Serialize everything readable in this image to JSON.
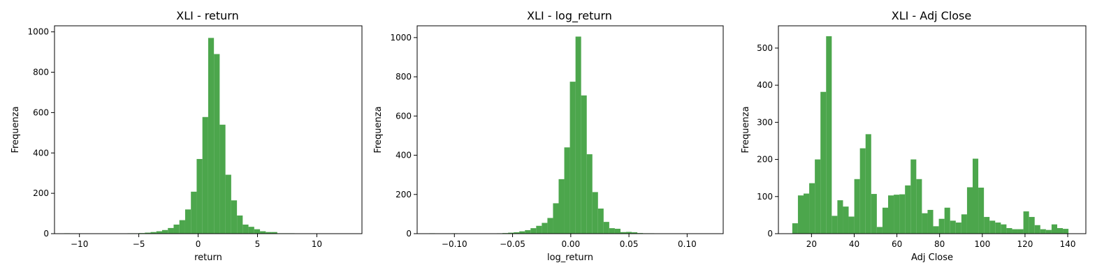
{
  "chart_data": [
    {
      "type": "bar",
      "title": "XLI - return",
      "xlabel": "return",
      "ylabel": "Frequenza",
      "xlim": [
        -12.1,
        13.8
      ],
      "ylim": [
        0,
        1030
      ],
      "xticks": [
        -10,
        -5,
        0,
        5,
        10
      ],
      "yticks": [
        0,
        200,
        400,
        600,
        800,
        1000
      ],
      "bin_start": -11.28,
      "bin_width": 0.485,
      "color": "#4ca64c",
      "values": [
        2,
        0,
        1,
        0,
        1,
        0,
        1,
        0,
        1,
        0,
        1,
        2,
        2,
        3,
        5,
        8,
        12,
        18,
        28,
        45,
        67,
        120,
        208,
        370,
        578,
        970,
        890,
        540,
        292,
        165,
        90,
        45,
        34,
        22,
        12,
        8,
        8,
        2,
        2,
        2,
        1,
        1,
        0,
        1,
        0,
        0,
        0,
        1,
        0,
        0,
        1
      ]
    },
    {
      "type": "bar",
      "title": "XLI - log_return",
      "xlabel": "log_return",
      "ylabel": "Frequenza",
      "xlim": [
        -0.132,
        0.131
      ],
      "ylim": [
        0,
        1060
      ],
      "xticks": [
        -0.1,
        -0.05,
        0.0,
        0.05,
        0.1
      ],
      "yticks": [
        0,
        200,
        400,
        600,
        800,
        1000
      ],
      "bin_start": -0.1215,
      "bin_width": 0.00483,
      "color": "#4ca64c",
      "values": [
        2,
        0,
        1,
        0,
        2,
        0,
        0,
        0,
        1,
        0,
        1,
        1,
        2,
        3,
        5,
        7,
        12,
        18,
        28,
        40,
        55,
        80,
        155,
        278,
        440,
        775,
        1005,
        705,
        405,
        212,
        128,
        60,
        28,
        25,
        8,
        9,
        7,
        3,
        2,
        2,
        1,
        1,
        0,
        0,
        0,
        0,
        1,
        1,
        0,
        0,
        1
      ]
    },
    {
      "type": "bar",
      "title": "XLI - Adj Close",
      "xlabel": "Adj Close",
      "ylabel": "Frequenza",
      "xlim": [
        4.5,
        148.5
      ],
      "ylim": [
        0,
        560
      ],
      "xticks": [
        20,
        40,
        60,
        80,
        100,
        120,
        140
      ],
      "yticks": [
        0,
        100,
        200,
        300,
        400,
        500
      ],
      "bin_start": 11.0,
      "bin_width": 2.64,
      "color": "#4ca64c",
      "values": [
        28,
        103,
        108,
        136,
        200,
        382,
        532,
        48,
        90,
        73,
        46,
        147,
        230,
        268,
        107,
        18,
        70,
        103,
        105,
        106,
        130,
        200,
        147,
        55,
        64,
        20,
        40,
        70,
        35,
        30,
        52,
        125,
        202,
        124,
        45,
        35,
        30,
        25,
        15,
        12,
        12,
        60,
        45,
        23,
        12,
        10,
        25,
        15,
        13
      ]
    }
  ]
}
